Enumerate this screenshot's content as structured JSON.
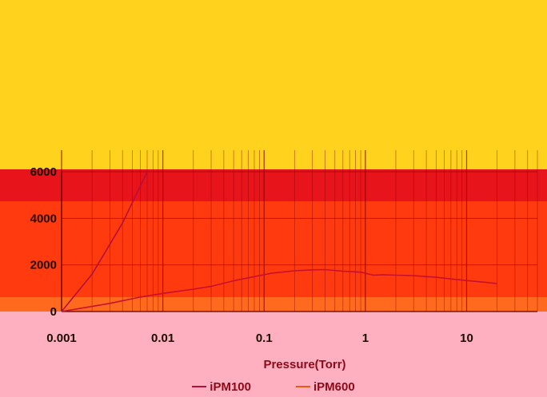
{
  "colors": {
    "background_top": "#FFD21E",
    "plot_band_upper": "#E8141B",
    "plot_band_lower": "#FF3A0E",
    "bottom_band": "#FFB0C0",
    "series_iPM100": "#B4103C",
    "series_iPM600": "#C8102E",
    "grid": "#8B0000"
  },
  "chart_data": {
    "type": "line",
    "title": "",
    "xlabel": "Pressure(Torr)",
    "ylabel": "",
    "x_scale": "log",
    "xlim": [
      0.001,
      50
    ],
    "ylim": [
      0,
      6000
    ],
    "x_ticks": [
      "0.001",
      "0.01",
      "0.1",
      "1",
      "10"
    ],
    "y_ticks": [
      "0",
      "2000",
      "4000",
      "6000"
    ],
    "grid": true,
    "legend": "bottom",
    "series": [
      {
        "name": "iPM100",
        "color": "#B4103C",
        "x": [
          0.001,
          0.002,
          0.004,
          0.007
        ],
        "y": [
          0,
          1600,
          3800,
          6000
        ]
      },
      {
        "name": "iPM600",
        "color": "#C8102E",
        "x": [
          0.001,
          0.003,
          0.006,
          0.01,
          0.02,
          0.03,
          0.05,
          0.08,
          0.12,
          0.2,
          0.3,
          0.4,
          0.6,
          0.9,
          1.2,
          1.5,
          2,
          3,
          4,
          5,
          7,
          10,
          15,
          20
        ],
        "y": [
          0,
          350,
          620,
          780,
          960,
          1080,
          1320,
          1500,
          1650,
          1750,
          1790,
          1800,
          1730,
          1690,
          1560,
          1580,
          1560,
          1540,
          1500,
          1470,
          1400,
          1330,
          1260,
          1200
        ]
      }
    ]
  }
}
